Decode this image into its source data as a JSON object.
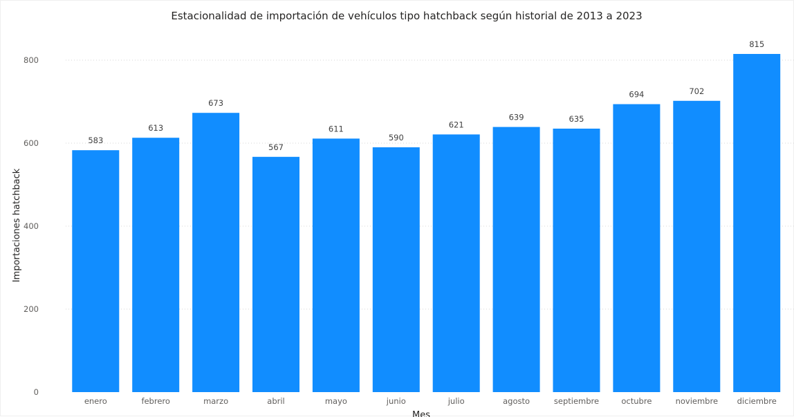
{
  "chart_data": {
    "type": "bar",
    "title": "Estacionalidad de importación de vehículos tipo hatchback según historial de 2013 a 2023",
    "xlabel": "Mes",
    "ylabel": "Importaciones hatchback",
    "categories": [
      "enero",
      "febrero",
      "marzo",
      "abril",
      "mayo",
      "junio",
      "julio",
      "agosto",
      "septiembre",
      "octubre",
      "noviembre",
      "diciembre"
    ],
    "values": [
      583,
      613,
      673,
      567,
      611,
      590,
      621,
      639,
      635,
      694,
      702,
      815
    ],
    "ylim": [
      0,
      860
    ],
    "yticks": [
      0,
      200,
      400,
      600,
      800
    ],
    "grid": true,
    "data_labels": true,
    "legend": "none",
    "bar_color": "#118dff"
  }
}
